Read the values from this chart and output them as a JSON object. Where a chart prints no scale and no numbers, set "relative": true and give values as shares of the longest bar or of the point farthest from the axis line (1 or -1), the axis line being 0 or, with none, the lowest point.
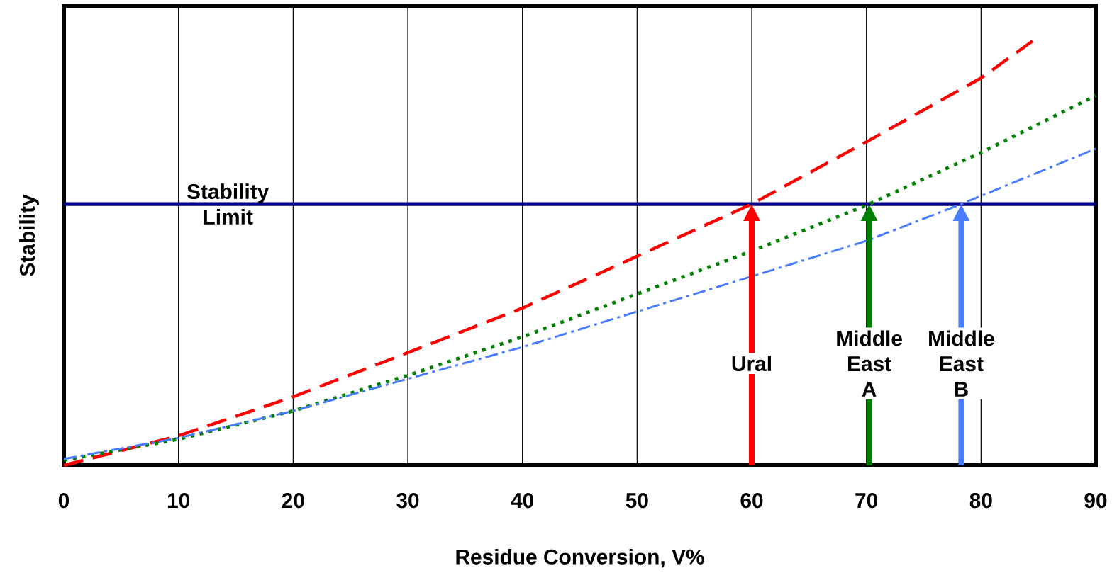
{
  "chart_data": {
    "type": "line",
    "relative": true,
    "xlabel": "Residue Conversion, V%",
    "ylabel": "Stability",
    "xlim": [
      0,
      90
    ],
    "xticks": [
      0,
      10,
      20,
      30,
      40,
      50,
      60,
      70,
      80,
      90
    ],
    "grid": "x",
    "tick_labels": "x",
    "series": [
      {
        "color": "#ff0000",
        "line_style": "dashed",
        "x": [
          0,
          10,
          20,
          30,
          40,
          50,
          60,
          70,
          80,
          85
        ],
        "values": [
          0,
          0.069,
          0.16,
          0.263,
          0.367,
          0.488,
          0.61,
          0.755,
          0.904,
          1.0
        ]
      },
      {
        "color": "#008000",
        "line_style": "dotted",
        "x": [
          0,
          10,
          20,
          30,
          40,
          50,
          60,
          70,
          80,
          90
        ],
        "values": [
          0.012,
          0.061,
          0.127,
          0.21,
          0.3,
          0.4,
          0.5,
          0.607,
          0.73,
          0.863
        ]
      },
      {
        "color": "#4a7cff",
        "line_style": "dashdot",
        "x": [
          0,
          10,
          20,
          30,
          40,
          50,
          60,
          70,
          78,
          90
        ],
        "values": [
          0.015,
          0.064,
          0.127,
          0.202,
          0.276,
          0.359,
          0.441,
          0.524,
          0.607,
          0.739
        ]
      }
    ],
    "ref_lines": [
      {
        "axis": "y",
        "value": 0.61,
        "label": "Stability Limit",
        "color": "#000080"
      }
    ],
    "annotations": [
      "Ural",
      "Middle East A",
      "Middle East B"
    ]
  }
}
